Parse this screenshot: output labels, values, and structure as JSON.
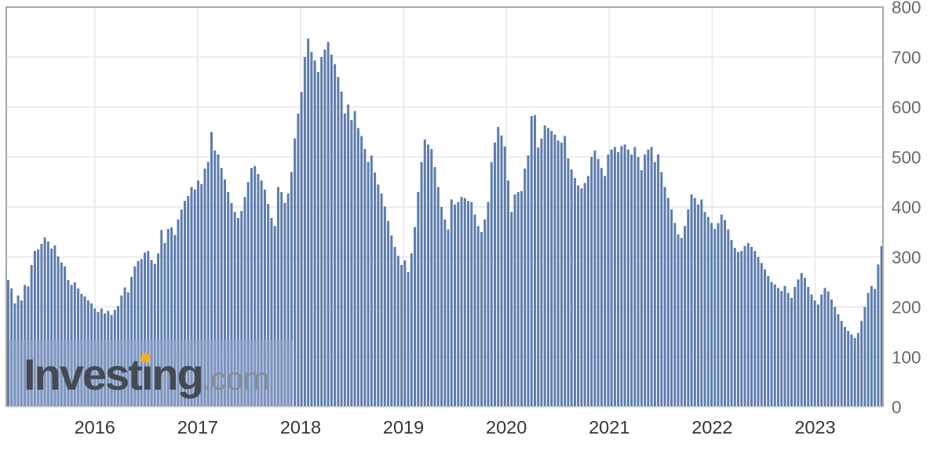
{
  "chart_data": {
    "type": "bar",
    "title": "",
    "xlabel": "",
    "ylabel": "",
    "bar_color": "#5d7dab",
    "grid_color": "#ececec",
    "frame_color": "#a9a9a9",
    "baseline_color": "#d6d6d6",
    "x_tick_color": "#353537",
    "y_tick_color": "#696a6e",
    "grid": true,
    "legend": "none",
    "y_axis_side": "right",
    "ylim": [
      0,
      800
    ],
    "y_ticks": [
      800,
      700,
      600,
      500,
      400,
      300,
      200,
      100,
      0
    ],
    "x_ticks": [
      2016,
      2017,
      2018,
      2019,
      2020,
      2021,
      2022,
      2023
    ],
    "x_range_years": [
      2015.14,
      2023.66
    ],
    "values": [
      254,
      237,
      207,
      223,
      213,
      244,
      241,
      284,
      312,
      315,
      326,
      339,
      331,
      317,
      323,
      301,
      289,
      281,
      254,
      244,
      249,
      237,
      226,
      221,
      213,
      207,
      197,
      190,
      197,
      187,
      192,
      184,
      194,
      202,
      223,
      239,
      229,
      260,
      281,
      292,
      296,
      309,
      312,
      294,
      286,
      307,
      354,
      328,
      356,
      359,
      344,
      375,
      395,
      412,
      422,
      440,
      435,
      453,
      446,
      477,
      490,
      550,
      513,
      505,
      478,
      455,
      430,
      408,
      390,
      378,
      392,
      420,
      450,
      478,
      482,
      466,
      453,
      435,
      406,
      378,
      362,
      440,
      430,
      408,
      427,
      470,
      537,
      587,
      630,
      700,
      737,
      710,
      693,
      670,
      700,
      715,
      730,
      705,
      686,
      660,
      631,
      587,
      605,
      574,
      592,
      558,
      542,
      516,
      490,
      503,
      469,
      445,
      427,
      401,
      372,
      343,
      320,
      302,
      284,
      293,
      270,
      307,
      360,
      430,
      490,
      535,
      525,
      516,
      480,
      440,
      400,
      375,
      355,
      415,
      405,
      410,
      420,
      418,
      412,
      410,
      385,
      362,
      350,
      375,
      410,
      490,
      529,
      560,
      543,
      521,
      453,
      390,
      425,
      430,
      432,
      477,
      503,
      582,
      584,
      519,
      537,
      563,
      558,
      552,
      545,
      533,
      529,
      542,
      497,
      475,
      458,
      443,
      437,
      448,
      462,
      500,
      513,
      496,
      478,
      462,
      505,
      515,
      520,
      510,
      522,
      525,
      515,
      505,
      520,
      500,
      474,
      505,
      515,
      520,
      490,
      505,
      470,
      440,
      418,
      395,
      368,
      345,
      338,
      362,
      395,
      425,
      418,
      405,
      415,
      390,
      380,
      368,
      356,
      368,
      385,
      374,
      355,
      334,
      318,
      310,
      312,
      322,
      328,
      320,
      312,
      300,
      288,
      275,
      262,
      250,
      245,
      238,
      232,
      242,
      228,
      218,
      240,
      255,
      268,
      258,
      240,
      225,
      213,
      205,
      225,
      238,
      231,
      215,
      200,
      185,
      172,
      160,
      152,
      145,
      138,
      148,
      172,
      200,
      228,
      242,
      236,
      285,
      322
    ]
  },
  "watermark": {
    "brand": "Investing",
    "suffix": ".com",
    "accent_color": "#f2b11e",
    "box_color": "rgba(149,170,207,0.55)"
  }
}
